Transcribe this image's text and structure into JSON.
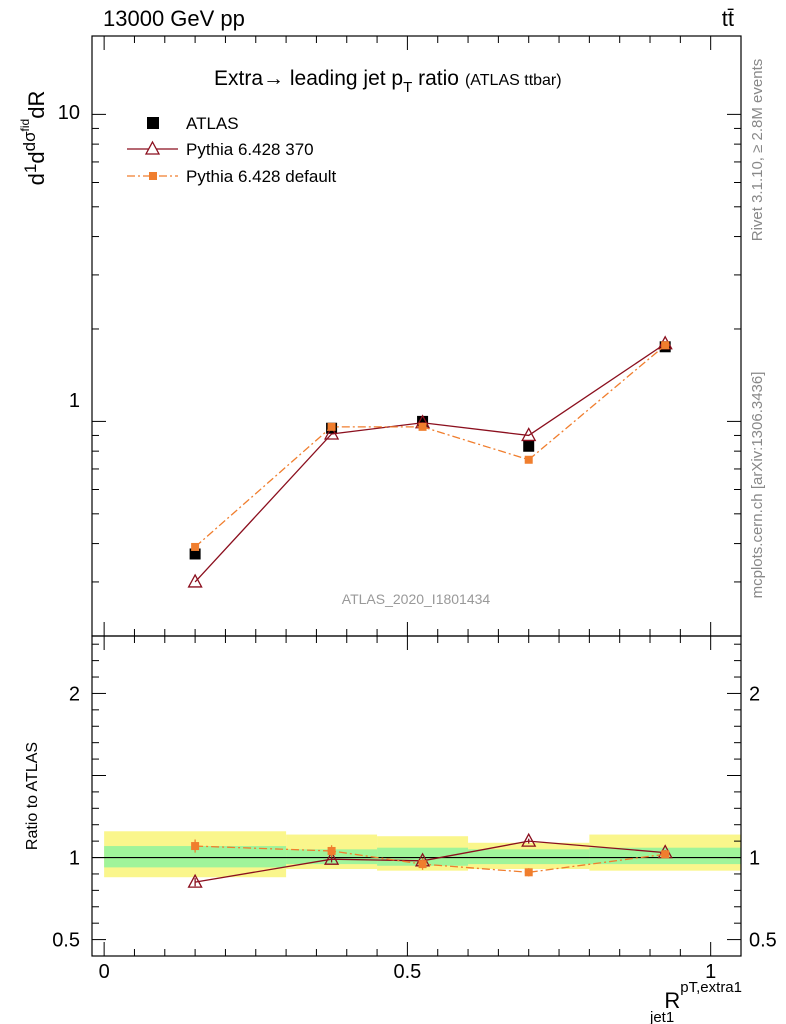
{
  "header": {
    "left": "13000 GeV pp",
    "right": "tt̄"
  },
  "side_labels": {
    "rivet": "Rivet 3.1.10, ≥ 2.8M events",
    "site": "mcplots.cern.ch [arXiv:1306.3436]"
  },
  "chart_data": [
    {
      "type": "line",
      "title": "Extra→ leading jet p",
      "title_sub": "T",
      "title_rest": " ratio",
      "title_tag": "(ATLAS ttbar)",
      "ylabel": "dσ/dR (normalised)",
      "yscale": "log",
      "ylim": [
        0.2,
        18
      ],
      "xlim": [
        -0.02,
        1.05
      ],
      "y_ticks": [
        "1",
        "10"
      ],
      "watermark": "ATLAS_2020_I1801434",
      "x": [
        0.15,
        0.375,
        0.525,
        0.7,
        0.925
      ],
      "x_bins": [
        [
          0.0,
          0.3
        ],
        [
          0.3,
          0.45
        ],
        [
          0.45,
          0.6
        ],
        [
          0.6,
          0.8
        ],
        [
          0.8,
          1.05
        ]
      ],
      "legend_position": "top-left",
      "series": [
        {
          "name": "ATLAS",
          "marker": "square",
          "color": "#000000",
          "values": [
            0.37,
            0.95,
            1.0,
            0.83,
            1.75
          ]
        },
        {
          "name": "Pythia 6.428 370",
          "marker": "triangle-open",
          "color": "#8b0f1e",
          "line": "solid",
          "values": [
            0.3,
            0.91,
            0.99,
            0.9,
            1.79
          ]
        },
        {
          "name": "Pythia 6.428 default",
          "marker": "square-small",
          "color": "#f07e2e",
          "line": "dashdot",
          "values": [
            0.39,
            0.96,
            0.96,
            0.75,
            1.77
          ]
        }
      ]
    },
    {
      "type": "line",
      "ylabel": "Ratio to ATLAS",
      "xlabel_main": "R",
      "xlabel_sup": "pT,extra1",
      "xlabel_sub": "jet1",
      "ylim": [
        0.4,
        2.35
      ],
      "xlim": [
        -0.02,
        1.05
      ],
      "y_ticks": [
        "0.5",
        "1",
        "2"
      ],
      "x_ticks": [
        "0",
        "0.5",
        "1"
      ],
      "x": [
        0.15,
        0.375,
        0.525,
        0.7,
        0.925
      ],
      "bands": {
        "inner_color": "#a0f49a",
        "outer_color": "#faf68c",
        "bins": [
          {
            "x": [
              0.0,
              0.3
            ],
            "inner": [
              0.94,
              1.07
            ],
            "outer": [
              0.88,
              1.16
            ]
          },
          {
            "x": [
              0.3,
              0.45
            ],
            "inner": [
              0.96,
              1.05
            ],
            "outer": [
              0.93,
              1.14
            ]
          },
          {
            "x": [
              0.45,
              0.6
            ],
            "inner": [
              0.95,
              1.06
            ],
            "outer": [
              0.92,
              1.13
            ]
          },
          {
            "x": [
              0.6,
              0.8
            ],
            "inner": [
              0.96,
              1.05
            ],
            "outer": [
              0.93,
              1.09
            ]
          },
          {
            "x": [
              0.8,
              1.05
            ],
            "inner": [
              0.96,
              1.06
            ],
            "outer": [
              0.92,
              1.14
            ]
          }
        ]
      },
      "series": [
        {
          "name": "Pythia 6.428 370",
          "marker": "triangle-open",
          "color": "#8b0f1e",
          "values": [
            0.85,
            0.99,
            0.98,
            1.1,
            1.03
          ],
          "errors": [
            0.025,
            0.02,
            0.02,
            0.015,
            0.015
          ]
        },
        {
          "name": "Pythia 6.428 default",
          "marker": "square-small",
          "color": "#f07e2e",
          "values": [
            1.07,
            1.04,
            0.96,
            0.91,
            1.02
          ],
          "errors": [
            0.04,
            0.035,
            0.035,
            0.025,
            0.02
          ]
        }
      ]
    }
  ]
}
